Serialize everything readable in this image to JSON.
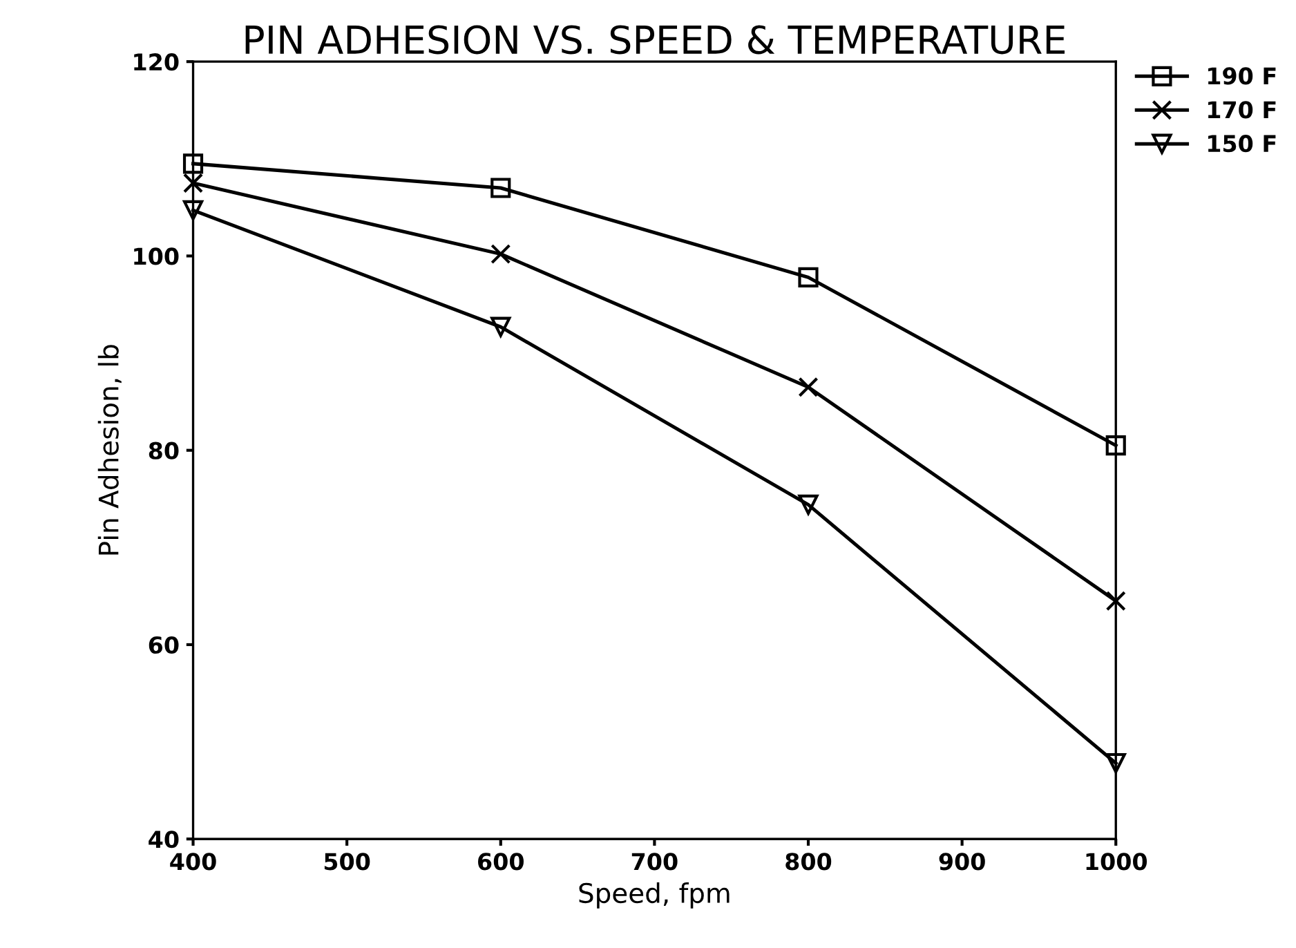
{
  "chart_data": {
    "type": "line",
    "title": "PIN ADHESION VS. SPEED & TEMPERATURE",
    "xlabel": "Speed, fpm",
    "ylabel": "Pin Adhesion, lb",
    "x": [
      400,
      600,
      800,
      1000
    ],
    "series": [
      {
        "name": "190 F",
        "color": "#000000",
        "marker": "square",
        "values": [
          109.5,
          107.0,
          97.8,
          80.5
        ]
      },
      {
        "name": "170 F",
        "color": "#000000",
        "marker": "cross",
        "values": [
          107.5,
          100.2,
          86.5,
          64.5
        ]
      },
      {
        "name": "150 F",
        "color": "#000000",
        "marker": "triangle",
        "values": [
          104.7,
          92.7,
          74.4,
          47.8
        ]
      }
    ],
    "xlim": [
      400,
      1000
    ],
    "xticks": [
      400,
      500,
      600,
      700,
      800,
      900,
      1000
    ],
    "ylim": [
      40,
      120
    ],
    "yticks": [
      40,
      60,
      80,
      100,
      120
    ],
    "grid": false,
    "legend": "top right",
    "line_style": "solid"
  }
}
